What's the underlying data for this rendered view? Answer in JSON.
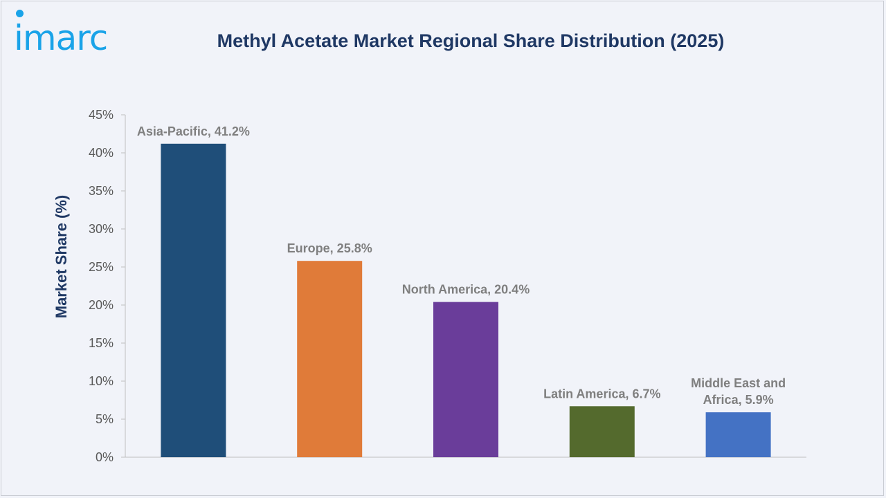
{
  "header": {
    "logo_text": "imarc",
    "title": "Methyl Acetate Market Regional Share Distribution (2025)"
  },
  "colors": {
    "logo": "#1aa3e8",
    "title": "#1f3864",
    "axis": "#bfbfbf"
  },
  "chart_data": {
    "type": "bar",
    "title": "Methyl Acetate Market Regional Share Distribution (2025)",
    "xlabel": "",
    "ylabel": "Market Share (%)",
    "ylim": [
      0,
      45
    ],
    "yticks": [
      0,
      5,
      10,
      15,
      20,
      25,
      30,
      35,
      40,
      45
    ],
    "ytick_labels": [
      "0%",
      "5%",
      "10%",
      "15%",
      "20%",
      "25%",
      "30%",
      "35%",
      "40%",
      "45%"
    ],
    "grid": false,
    "categories": [
      "Asia-Pacific",
      "Europe",
      "North America",
      "Latin America",
      "Middle East and Africa"
    ],
    "values": [
      41.2,
      25.8,
      20.4,
      6.7,
      5.9
    ],
    "data_labels": [
      [
        "Asia-Pacific, 41.2%"
      ],
      [
        "Europe, 25.8%"
      ],
      [
        "North America, 20.4%"
      ],
      [
        "Latin America, 6.7%"
      ],
      [
        "Middle East and",
        "Africa, 5.9%"
      ]
    ],
    "bar_colors": [
      "#1f4e79",
      "#e07b39",
      "#6a3d9a",
      "#546a2d",
      "#4472c4"
    ]
  }
}
